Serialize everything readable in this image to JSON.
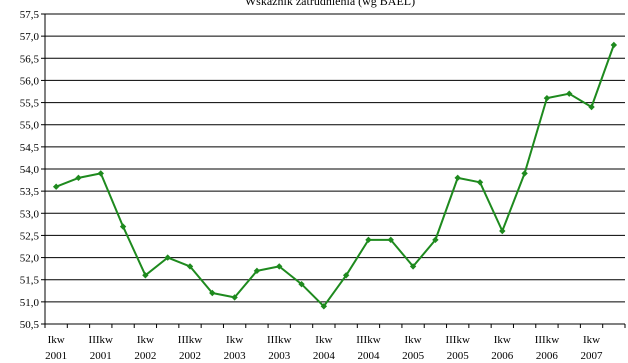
{
  "chart_data": {
    "type": "line",
    "title": "Wskaźnik zatrudnienia (wg BAEL)",
    "xlabel": "",
    "ylabel": "",
    "ylim": [
      50.5,
      57.5
    ],
    "ytick_step": 0.5,
    "yticks": [
      "50,5",
      "51,0",
      "51,5",
      "52,0",
      "52,5",
      "53,0",
      "53,5",
      "54,0",
      "54,5",
      "55,0",
      "55,5",
      "56,0",
      "56,5",
      "57,0",
      "57,5"
    ],
    "grid": true,
    "legend": "none",
    "colors": {
      "series": "#1e8a1e",
      "grid": "#000000",
      "axis": "#000000"
    },
    "x_tick_labels": [
      {
        "line1": "Ikw",
        "line2": "2001"
      },
      {
        "line1": "IIIkw",
        "line2": "2001"
      },
      {
        "line1": "Ikw",
        "line2": "2002"
      },
      {
        "line1": "IIIkw",
        "line2": "2002"
      },
      {
        "line1": "Ikw",
        "line2": "2003"
      },
      {
        "line1": "IIIkw",
        "line2": "2003"
      },
      {
        "line1": "Ikw",
        "line2": "2004"
      },
      {
        "line1": "IIIkw",
        "line2": "2004"
      },
      {
        "line1": "Ikw",
        "line2": "2005"
      },
      {
        "line1": "IIIkw",
        "line2": "2005"
      },
      {
        "line1": "Ikw",
        "line2": "2006"
      },
      {
        "line1": "IIIkw",
        "line2": "2006"
      },
      {
        "line1": "Ikw",
        "line2": "2007"
      }
    ],
    "series": [
      {
        "values": [
          53.6,
          53.8,
          53.9,
          52.7,
          51.6,
          52.0,
          51.8,
          51.2,
          51.1,
          51.7,
          51.8,
          51.4,
          50.9,
          51.6,
          52.4,
          52.4,
          51.8,
          52.4,
          53.8,
          53.7,
          52.6,
          53.9,
          55.6,
          55.7,
          55.4,
          56.8
        ]
      }
    ]
  }
}
